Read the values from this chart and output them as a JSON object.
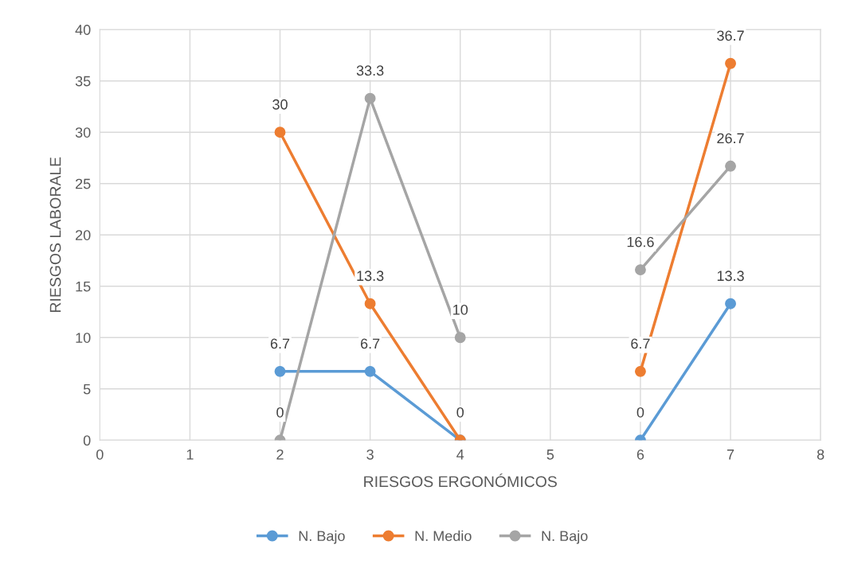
{
  "chart_data": {
    "type": "line",
    "xlabel": "RIESGOS ERGONÓMICOS",
    "ylabel": "RIESGOS LABORALE",
    "x": [
      2,
      3,
      4,
      5,
      6,
      7
    ],
    "series": [
      {
        "name": "N. Bajo",
        "color": "#5b9bd5",
        "values": [
          6.7,
          6.7,
          0,
          null,
          0,
          13.3
        ]
      },
      {
        "name": "N. Medio",
        "color": "#ed7d31",
        "values": [
          30,
          13.3,
          0,
          null,
          6.7,
          36.7
        ],
        "value_labels": [
          "30",
          "13.3",
          null,
          null,
          "6.7",
          "36.7"
        ]
      },
      {
        "name": "N. Bajo",
        "color": "#a5a5a5",
        "values": [
          0,
          33.3,
          10,
          null,
          16.6,
          26.7
        ]
      }
    ],
    "xlim": [
      0,
      8
    ],
    "xticks": [
      0,
      1,
      2,
      3,
      4,
      5,
      6,
      7,
      8
    ],
    "ylim": [
      0,
      40
    ],
    "yticks": [
      0,
      5,
      10,
      15,
      20,
      25,
      30,
      35,
      40
    ],
    "grid": true,
    "legend": "bottom",
    "marker": "circle",
    "line_style": "solid",
    "data_labels": true
  }
}
